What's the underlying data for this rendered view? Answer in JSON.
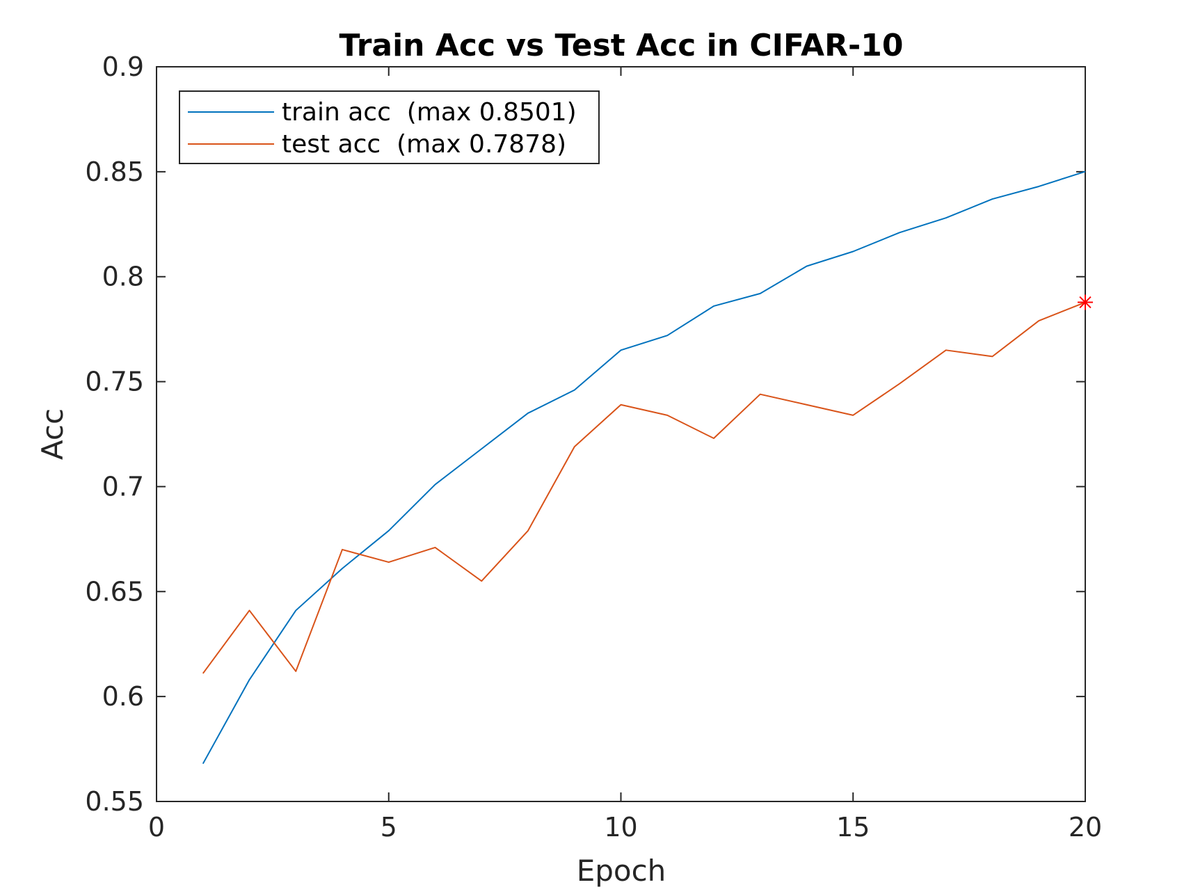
{
  "chart_data": {
    "type": "line",
    "title": "Train Acc vs Test Acc in CIFAR-10",
    "xlabel": "Epoch",
    "ylabel": "Acc",
    "xlim": [
      0,
      20
    ],
    "ylim": [
      0.55,
      0.9
    ],
    "xticks": [
      "0",
      "5",
      "10",
      "15",
      "20"
    ],
    "xtick_values": [
      0,
      5,
      10,
      15,
      20
    ],
    "yticks": [
      "0.55",
      "0.6",
      "0.65",
      "0.7",
      "0.75",
      "0.8",
      "0.85",
      "0.9"
    ],
    "ytick_values": [
      0.55,
      0.6,
      0.65,
      0.7,
      0.75,
      0.8,
      0.85,
      0.9
    ],
    "grid": false,
    "legend_position": "top-left",
    "x": [
      1,
      2,
      3,
      4,
      5,
      6,
      7,
      8,
      9,
      10,
      11,
      12,
      13,
      14,
      15,
      16,
      17,
      18,
      19,
      20
    ],
    "series": [
      {
        "name": "train acc  (max 0.8501)",
        "color": "#0072BD",
        "values": [
          0.568,
          0.608,
          0.641,
          0.661,
          0.679,
          0.701,
          0.718,
          0.735,
          0.746,
          0.765,
          0.772,
          0.786,
          0.792,
          0.805,
          0.812,
          0.821,
          0.828,
          0.837,
          0.843,
          0.8501
        ]
      },
      {
        "name": "test acc  (max 0.7878)",
        "color": "#D95319",
        "values": [
          0.611,
          0.641,
          0.612,
          0.67,
          0.664,
          0.671,
          0.655,
          0.679,
          0.719,
          0.739,
          0.734,
          0.723,
          0.744,
          0.739,
          0.734,
          0.749,
          0.765,
          0.762,
          0.779,
          0.7878
        ]
      }
    ],
    "markers": [
      {
        "x": 20,
        "y": 0.7878,
        "symbol": "asterisk",
        "color": "#FF0000"
      }
    ]
  }
}
